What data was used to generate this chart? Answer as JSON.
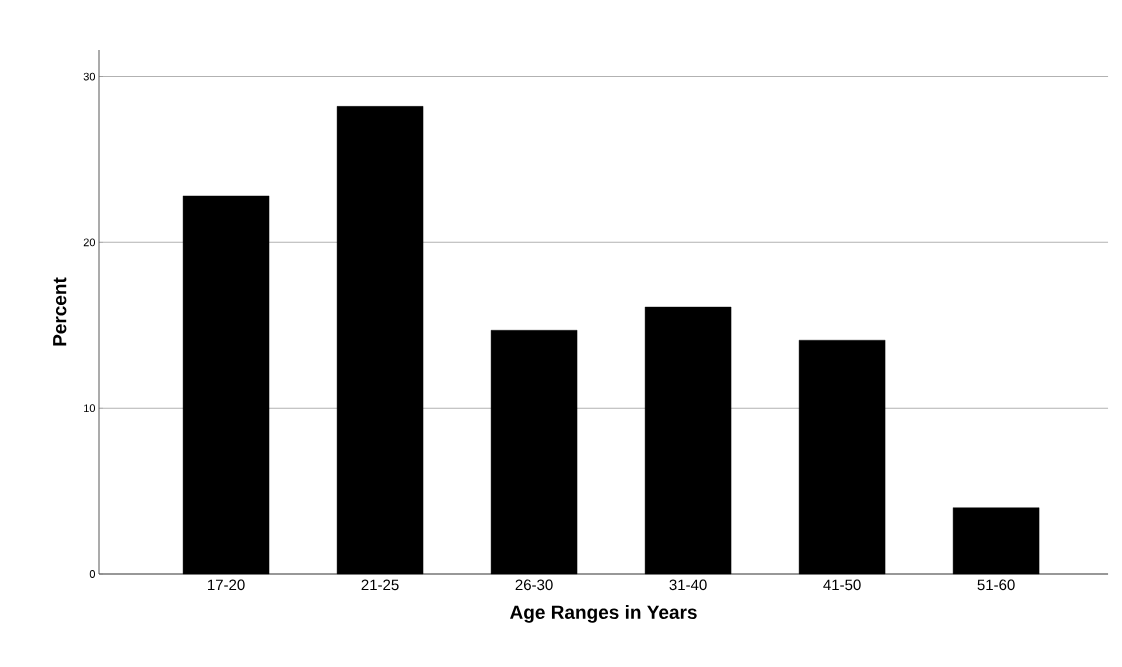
{
  "chart_data": {
    "type": "bar",
    "xlabel": "Age Ranges in Years",
    "ylabel": "Percent",
    "categories": [
      "17-20",
      "21-25",
      "26-30",
      "31-40",
      "41-50",
      "51-60"
    ],
    "values": [
      22.8,
      28.2,
      14.7,
      16.1,
      14.1,
      4.0
    ],
    "color": "#000000",
    "ylim": [
      0,
      31.6
    ],
    "yticks": [
      0,
      10,
      20,
      30
    ],
    "grid": "y"
  }
}
